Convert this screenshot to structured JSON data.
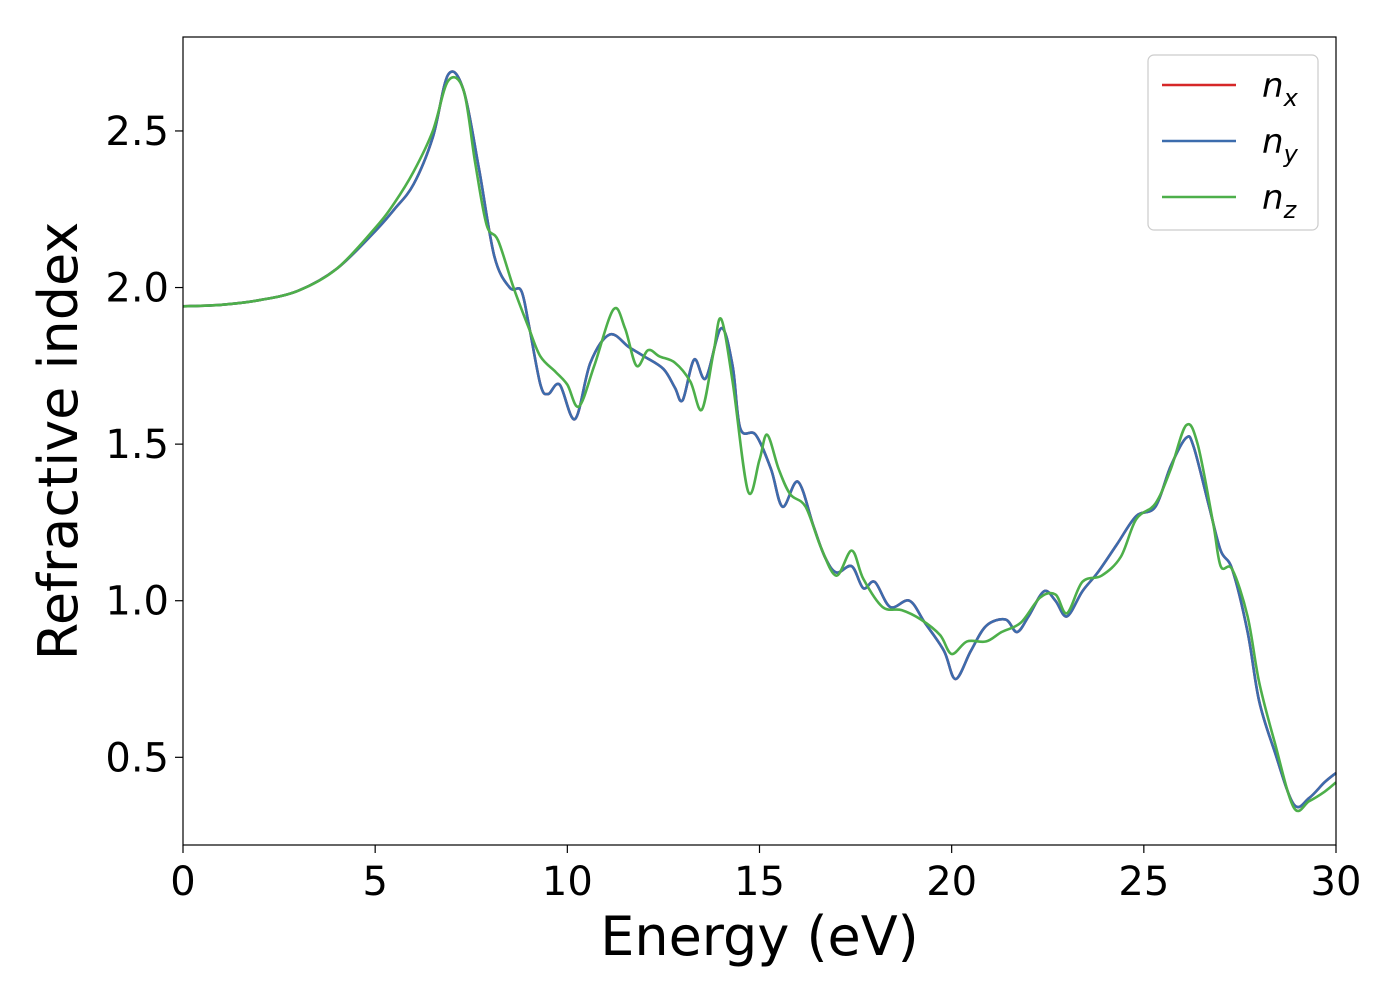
{
  "chart_data": {
    "type": "line",
    "xlabel": "Energy (eV)",
    "ylabel": "Refractive index",
    "xlim": [
      0,
      30
    ],
    "ylim": [
      0.22,
      2.8
    ],
    "xticks": [
      0,
      5,
      10,
      15,
      20,
      25,
      30
    ],
    "yticks": [
      0.5,
      1.0,
      1.5,
      2.0,
      2.5
    ],
    "xtick_labels": [
      "0",
      "5",
      "10",
      "15",
      "20",
      "25",
      "30"
    ],
    "ytick_labels": [
      "0.5",
      "1.0",
      "1.5",
      "2.0",
      "2.5"
    ],
    "grid": false,
    "legend_position": "top-right",
    "series": [
      {
        "name": "n_x",
        "label_base": "n",
        "label_sub": "x",
        "color": "#d62728",
        "points": [
          [
            0,
            1.94
          ],
          [
            1,
            1.945
          ],
          [
            2,
            1.96
          ],
          [
            3,
            1.99
          ],
          [
            4,
            2.06
          ],
          [
            5,
            2.18
          ],
          [
            5.5,
            2.25
          ],
          [
            6,
            2.33
          ],
          [
            6.5,
            2.48
          ],
          [
            6.9,
            2.68
          ],
          [
            7.3,
            2.63
          ],
          [
            7.7,
            2.38
          ],
          [
            8.1,
            2.1
          ],
          [
            8.5,
            2.0
          ],
          [
            8.8,
            1.99
          ],
          [
            9.0,
            1.88
          ],
          [
            9.3,
            1.69
          ],
          [
            9.5,
            1.66
          ],
          [
            9.8,
            1.69
          ],
          [
            10.2,
            1.58
          ],
          [
            10.6,
            1.76
          ],
          [
            11.1,
            1.85
          ],
          [
            11.6,
            1.81
          ],
          [
            12.0,
            1.78
          ],
          [
            12.5,
            1.74
          ],
          [
            12.8,
            1.68
          ],
          [
            13.0,
            1.64
          ],
          [
            13.3,
            1.77
          ],
          [
            13.6,
            1.71
          ],
          [
            14.0,
            1.87
          ],
          [
            14.3,
            1.75
          ],
          [
            14.5,
            1.55
          ],
          [
            14.9,
            1.53
          ],
          [
            15.3,
            1.42
          ],
          [
            15.6,
            1.3
          ],
          [
            16.0,
            1.38
          ],
          [
            16.4,
            1.24
          ],
          [
            16.7,
            1.14
          ],
          [
            17.0,
            1.09
          ],
          [
            17.4,
            1.11
          ],
          [
            17.7,
            1.04
          ],
          [
            18.0,
            1.06
          ],
          [
            18.4,
            0.98
          ],
          [
            18.9,
            1.0
          ],
          [
            19.3,
            0.93
          ],
          [
            19.8,
            0.84
          ],
          [
            20.1,
            0.75
          ],
          [
            20.5,
            0.84
          ],
          [
            20.9,
            0.92
          ],
          [
            21.4,
            0.94
          ],
          [
            21.7,
            0.9
          ],
          [
            22.0,
            0.95
          ],
          [
            22.4,
            1.03
          ],
          [
            22.7,
            1.0
          ],
          [
            23.0,
            0.95
          ],
          [
            23.4,
            1.03
          ],
          [
            23.8,
            1.09
          ],
          [
            24.3,
            1.18
          ],
          [
            24.8,
            1.27
          ],
          [
            25.3,
            1.3
          ],
          [
            25.7,
            1.43
          ],
          [
            26.1,
            1.52
          ],
          [
            26.3,
            1.49
          ],
          [
            26.7,
            1.3
          ],
          [
            27.0,
            1.16
          ],
          [
            27.3,
            1.1
          ],
          [
            27.7,
            0.9
          ],
          [
            28.0,
            0.68
          ],
          [
            28.4,
            0.52
          ],
          [
            28.9,
            0.35
          ],
          [
            29.3,
            0.37
          ],
          [
            29.7,
            0.42
          ],
          [
            30.0,
            0.45
          ]
        ]
      },
      {
        "name": "n_y",
        "label_base": "n",
        "label_sub": "y",
        "color": "#3c6cad",
        "points": [
          [
            0,
            1.94
          ],
          [
            1,
            1.945
          ],
          [
            2,
            1.96
          ],
          [
            3,
            1.99
          ],
          [
            4,
            2.06
          ],
          [
            5,
            2.18
          ],
          [
            5.5,
            2.25
          ],
          [
            6,
            2.33
          ],
          [
            6.5,
            2.48
          ],
          [
            6.9,
            2.68
          ],
          [
            7.3,
            2.63
          ],
          [
            7.7,
            2.38
          ],
          [
            8.1,
            2.1
          ],
          [
            8.5,
            2.0
          ],
          [
            8.8,
            1.99
          ],
          [
            9.0,
            1.88
          ],
          [
            9.3,
            1.69
          ],
          [
            9.5,
            1.66
          ],
          [
            9.8,
            1.69
          ],
          [
            10.2,
            1.58
          ],
          [
            10.6,
            1.76
          ],
          [
            11.1,
            1.85
          ],
          [
            11.6,
            1.81
          ],
          [
            12.0,
            1.78
          ],
          [
            12.5,
            1.74
          ],
          [
            12.8,
            1.68
          ],
          [
            13.0,
            1.64
          ],
          [
            13.3,
            1.77
          ],
          [
            13.6,
            1.71
          ],
          [
            14.0,
            1.87
          ],
          [
            14.3,
            1.75
          ],
          [
            14.5,
            1.55
          ],
          [
            14.9,
            1.53
          ],
          [
            15.3,
            1.42
          ],
          [
            15.6,
            1.3
          ],
          [
            16.0,
            1.38
          ],
          [
            16.4,
            1.24
          ],
          [
            16.7,
            1.14
          ],
          [
            17.0,
            1.09
          ],
          [
            17.4,
            1.11
          ],
          [
            17.7,
            1.04
          ],
          [
            18.0,
            1.06
          ],
          [
            18.4,
            0.98
          ],
          [
            18.9,
            1.0
          ],
          [
            19.3,
            0.93
          ],
          [
            19.8,
            0.84
          ],
          [
            20.1,
            0.75
          ],
          [
            20.5,
            0.84
          ],
          [
            20.9,
            0.92
          ],
          [
            21.4,
            0.94
          ],
          [
            21.7,
            0.9
          ],
          [
            22.0,
            0.95
          ],
          [
            22.4,
            1.03
          ],
          [
            22.7,
            1.0
          ],
          [
            23.0,
            0.95
          ],
          [
            23.4,
            1.03
          ],
          [
            23.8,
            1.09
          ],
          [
            24.3,
            1.18
          ],
          [
            24.8,
            1.27
          ],
          [
            25.3,
            1.3
          ],
          [
            25.7,
            1.43
          ],
          [
            26.1,
            1.52
          ],
          [
            26.3,
            1.49
          ],
          [
            26.7,
            1.3
          ],
          [
            27.0,
            1.16
          ],
          [
            27.3,
            1.1
          ],
          [
            27.7,
            0.9
          ],
          [
            28.0,
            0.68
          ],
          [
            28.4,
            0.52
          ],
          [
            28.9,
            0.35
          ],
          [
            29.3,
            0.37
          ],
          [
            29.7,
            0.42
          ],
          [
            30.0,
            0.45
          ]
        ]
      },
      {
        "name": "n_z",
        "label_base": "n",
        "label_sub": "z",
        "color": "#4daf4a",
        "points": [
          [
            0,
            1.94
          ],
          [
            1,
            1.945
          ],
          [
            2,
            1.96
          ],
          [
            3,
            1.99
          ],
          [
            4,
            2.06
          ],
          [
            5,
            2.19
          ],
          [
            5.5,
            2.27
          ],
          [
            6,
            2.37
          ],
          [
            6.5,
            2.5
          ],
          [
            6.9,
            2.66
          ],
          [
            7.3,
            2.63
          ],
          [
            7.6,
            2.4
          ],
          [
            7.9,
            2.2
          ],
          [
            8.2,
            2.15
          ],
          [
            8.6,
            2.0
          ],
          [
            9.0,
            1.87
          ],
          [
            9.3,
            1.78
          ],
          [
            9.7,
            1.73
          ],
          [
            10.0,
            1.69
          ],
          [
            10.3,
            1.62
          ],
          [
            10.7,
            1.75
          ],
          [
            11.2,
            1.93
          ],
          [
            11.5,
            1.87
          ],
          [
            11.8,
            1.75
          ],
          [
            12.1,
            1.8
          ],
          [
            12.4,
            1.78
          ],
          [
            12.8,
            1.76
          ],
          [
            13.2,
            1.7
          ],
          [
            13.5,
            1.61
          ],
          [
            13.8,
            1.79
          ],
          [
            14.0,
            1.9
          ],
          [
            14.3,
            1.7
          ],
          [
            14.7,
            1.35
          ],
          [
            15.0,
            1.45
          ],
          [
            15.2,
            1.53
          ],
          [
            15.5,
            1.42
          ],
          [
            15.8,
            1.34
          ],
          [
            16.2,
            1.3
          ],
          [
            16.6,
            1.17
          ],
          [
            17.0,
            1.08
          ],
          [
            17.4,
            1.16
          ],
          [
            17.7,
            1.07
          ],
          [
            18.2,
            0.98
          ],
          [
            18.7,
            0.97
          ],
          [
            19.2,
            0.94
          ],
          [
            19.7,
            0.89
          ],
          [
            20.0,
            0.83
          ],
          [
            20.4,
            0.87
          ],
          [
            20.9,
            0.87
          ],
          [
            21.3,
            0.9
          ],
          [
            21.8,
            0.93
          ],
          [
            22.3,
            1.01
          ],
          [
            22.7,
            1.02
          ],
          [
            23.0,
            0.96
          ],
          [
            23.4,
            1.06
          ],
          [
            23.9,
            1.08
          ],
          [
            24.4,
            1.14
          ],
          [
            24.8,
            1.26
          ],
          [
            25.3,
            1.31
          ],
          [
            25.7,
            1.42
          ],
          [
            26.1,
            1.56
          ],
          [
            26.4,
            1.5
          ],
          [
            26.8,
            1.25
          ],
          [
            27.0,
            1.11
          ],
          [
            27.3,
            1.1
          ],
          [
            27.7,
            0.95
          ],
          [
            28.0,
            0.74
          ],
          [
            28.4,
            0.55
          ],
          [
            28.9,
            0.34
          ],
          [
            29.3,
            0.36
          ],
          [
            29.7,
            0.39
          ],
          [
            30.0,
            0.42
          ]
        ]
      }
    ]
  }
}
